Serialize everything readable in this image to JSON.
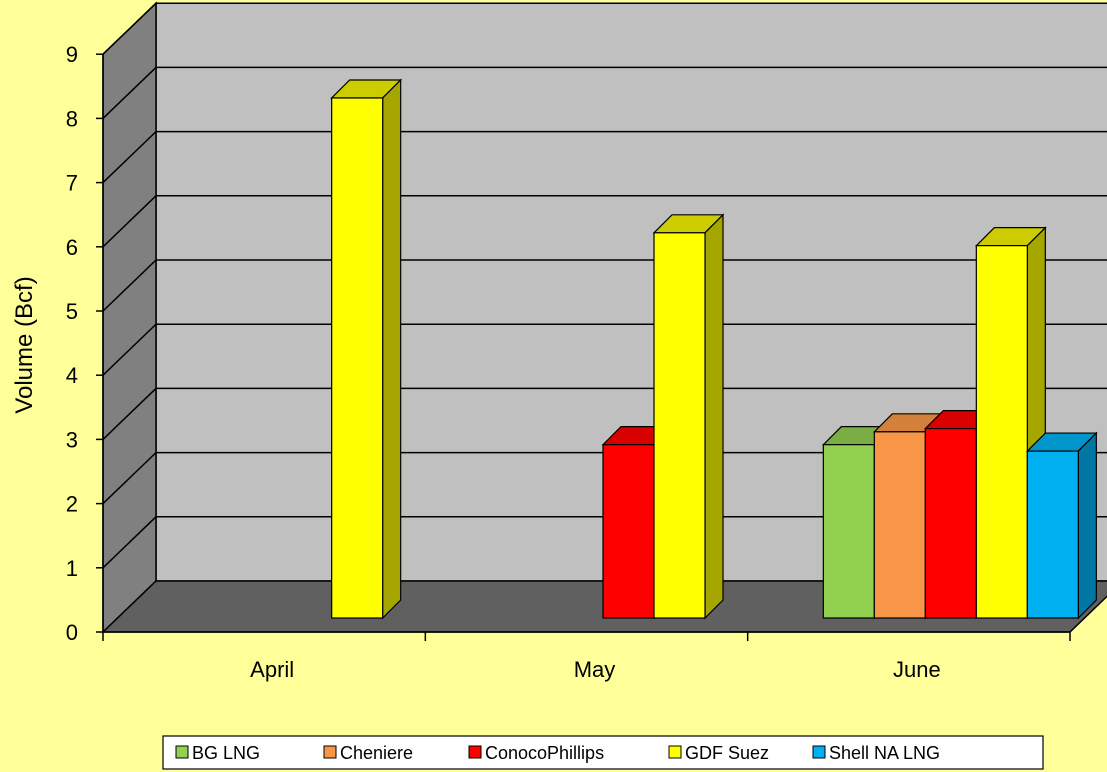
{
  "chart_data": {
    "type": "bar",
    "ylabel": "Volume (Bcf)",
    "xlabel": "",
    "ylim": [
      0,
      9
    ],
    "yticks": [
      "0",
      "1",
      "2",
      "3",
      "4",
      "5",
      "6",
      "7",
      "8",
      "9"
    ],
    "categories": [
      "April",
      "May",
      "June"
    ],
    "series": [
      {
        "name": "BG LNG",
        "values": [
          null,
          null,
          2.7
        ],
        "color": "#92d050",
        "side": "#6f9e3c",
        "top": "#7aae44"
      },
      {
        "name": "Cheniere",
        "values": [
          null,
          null,
          2.9
        ],
        "color": "#f79646",
        "side": "#b86f33",
        "top": "#d3803b"
      },
      {
        "name": "ConocoPhillips",
        "values": [
          null,
          2.7,
          2.95
        ],
        "color": "#ff0000",
        "side": "#b80000",
        "top": "#d90000"
      },
      {
        "name": "GDF Suez",
        "values": [
          8.1,
          6.0,
          5.8
        ],
        "color": "#ffff00",
        "side": "#a6a600",
        "top": "#cccc00"
      },
      {
        "name": "Shell NA LNG",
        "values": [
          null,
          null,
          2.6
        ],
        "color": "#00b0f0",
        "side": "#0077a3",
        "top": "#0096cc"
      }
    ],
    "legend_position": "bottom",
    "grid": true,
    "style": "3d-clustered-column"
  }
}
